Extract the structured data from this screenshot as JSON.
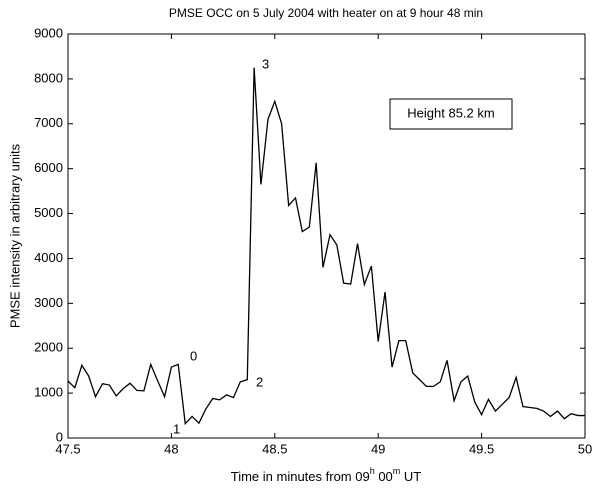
{
  "chart_data": {
    "type": "line",
    "title": "PMSE OCC on 5 July 2004 with heater on at 9 hour 48 min",
    "xlabel": [
      "Time in minutes from 09",
      "h",
      " 00",
      "m",
      " UT"
    ],
    "ylabel": "PMSE intensity in arbitrary units",
    "annotations": [
      "0",
      "1",
      "2",
      "3",
      "Height 85.2 km"
    ],
    "x": [
      47.5,
      47.533,
      47.567,
      47.6,
      47.633,
      47.667,
      47.7,
      47.733,
      47.767,
      47.8,
      47.833,
      47.867,
      47.9,
      47.933,
      47.967,
      48,
      48.033,
      48.067,
      48.1,
      48.133,
      48.167,
      48.2,
      48.233,
      48.267,
      48.3,
      48.333,
      48.367,
      48.4,
      48.433,
      48.467,
      48.5,
      48.533,
      48.567,
      48.6,
      48.633,
      48.667,
      48.7,
      48.733,
      48.767,
      48.8,
      48.833,
      48.867,
      48.9,
      48.933,
      48.967,
      49,
      49.033,
      49.067,
      49.1,
      49.133,
      49.167,
      49.2,
      49.233,
      49.267,
      49.3,
      49.333,
      49.367,
      49.4,
      49.433,
      49.467,
      49.5,
      49.533,
      49.567,
      49.6,
      49.633,
      49.667,
      49.7,
      49.733,
      49.767,
      49.8,
      49.833,
      49.867,
      49.9,
      49.933,
      49.967,
      50
    ],
    "series": [
      {
        "color": "#000000",
        "values": [
          1270,
          1120,
          1620,
          1380,
          920,
          1210,
          1180,
          940,
          1100,
          1220,
          1060,
          1050,
          1640,
          1280,
          920,
          1580,
          1640,
          320,
          480,
          330,
          650,
          880,
          850,
          960,
          900,
          1250,
          1300,
          8250,
          5650,
          7100,
          7500,
          7000,
          5180,
          5350,
          4600,
          4700,
          6130,
          3800,
          4530,
          4300,
          3450,
          3430,
          4330,
          3420,
          3830,
          2150,
          3250,
          1580,
          2170,
          2170,
          1450,
          1300,
          1150,
          1150,
          1250,
          1730,
          830,
          1250,
          1380,
          800,
          520,
          860,
          600,
          750,
          900,
          1350,
          700,
          680,
          660,
          600,
          480,
          600,
          430,
          540,
          500,
          500
        ]
      }
    ],
    "xlim": [
      47.5,
      50
    ],
    "xticks": [
      47.5,
      48,
      48.5,
      49,
      49.5,
      50
    ],
    "ylim": [
      0,
      9000
    ],
    "yticks": [
      0,
      1000,
      2000,
      3000,
      4000,
      5000,
      6000,
      7000,
      8000,
      9000
    ]
  }
}
